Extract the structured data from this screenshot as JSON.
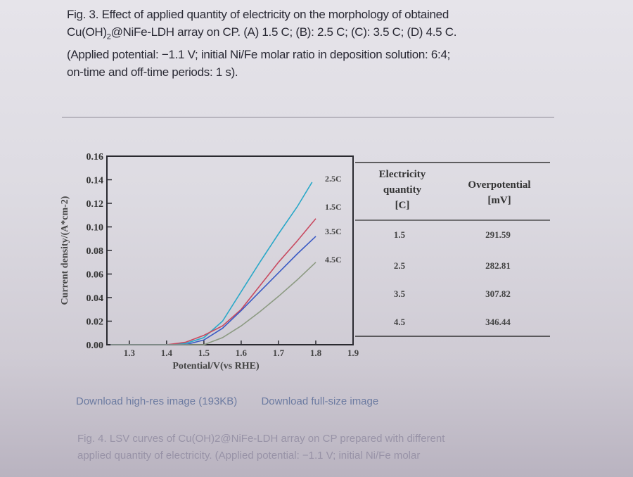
{
  "caption": {
    "line1": "Fig. 3. Effect of applied quantity of electricity on the morphology of obtained",
    "line2_pre": "Cu(OH)",
    "line2_sub": "2",
    "line2_post": "@NiFe-LDH array on CP. (A) 1.5 C; (B): 2.5 C; (C): 3.5 C; (D) 4.5 C.",
    "line3": "(Applied potential: −1.1 V; initial Ni/Fe molar ratio in deposition solution: 6:4;",
    "line4": "on-time and off-time periods: 1 s)."
  },
  "chart_data": {
    "type": "line",
    "xlabel": "Potential/V(vs RHE)",
    "ylabel": "Current density/(A*cm-2)",
    "xlim": [
      1.24,
      1.9
    ],
    "ylim": [
      0,
      0.16
    ],
    "xticks": [
      "1.3",
      "1.4",
      "1.5",
      "1.6",
      "1.7",
      "1.8",
      "1.9"
    ],
    "yticks": [
      "0.00",
      "0.02",
      "0.04",
      "0.06",
      "0.08",
      "0.10",
      "0.12",
      "0.14",
      "0.16"
    ],
    "grid": false,
    "series": [
      {
        "name": "2.5C",
        "color": "#2aa8c8",
        "x": [
          1.25,
          1.4,
          1.45,
          1.5,
          1.55,
          1.6,
          1.65,
          1.7,
          1.75,
          1.79
        ],
        "y": [
          0,
          0,
          0.001,
          0.006,
          0.02,
          0.045,
          0.07,
          0.094,
          0.117,
          0.138
        ]
      },
      {
        "name": "1.5C",
        "color": "#c84a60",
        "x": [
          1.25,
          1.4,
          1.45,
          1.5,
          1.55,
          1.6,
          1.65,
          1.7,
          1.75,
          1.8
        ],
        "y": [
          0,
          0,
          0.002,
          0.008,
          0.016,
          0.03,
          0.05,
          0.07,
          0.088,
          0.107
        ]
      },
      {
        "name": "3.5C",
        "color": "#3a5ac4",
        "x": [
          1.25,
          1.4,
          1.45,
          1.5,
          1.55,
          1.6,
          1.65,
          1.7,
          1.75,
          1.8
        ],
        "y": [
          0,
          0,
          0,
          0.004,
          0.014,
          0.029,
          0.045,
          0.061,
          0.077,
          0.092
        ]
      },
      {
        "name": "4.5C",
        "color": "#8c9a82",
        "x": [
          1.25,
          1.45,
          1.5,
          1.55,
          1.6,
          1.65,
          1.7,
          1.75,
          1.8
        ],
        "y": [
          0,
          0,
          0,
          0.006,
          0.016,
          0.028,
          0.041,
          0.055,
          0.07
        ]
      }
    ]
  },
  "table": {
    "headers": [
      [
        "Electricity",
        "quantity",
        "[C]"
      ],
      [
        "Overpotential",
        "[mV]"
      ]
    ],
    "rows": [
      [
        "1.5",
        "291.59"
      ],
      [
        "2.5",
        "282.81"
      ],
      [
        "3.5",
        "307.82"
      ],
      [
        "4.5",
        "346.44"
      ]
    ]
  },
  "links": {
    "highres": "Download high-res image (193KB)",
    "fullsize": "Download full-size image"
  },
  "next_caption": {
    "line1": "Fig. 4. LSV curves of Cu(OH)2@NiFe-LDH array on CP prepared with different",
    "line2": "applied quantity of electricity. (Applied potential: −1.1 V; initial Ni/Fe molar"
  }
}
